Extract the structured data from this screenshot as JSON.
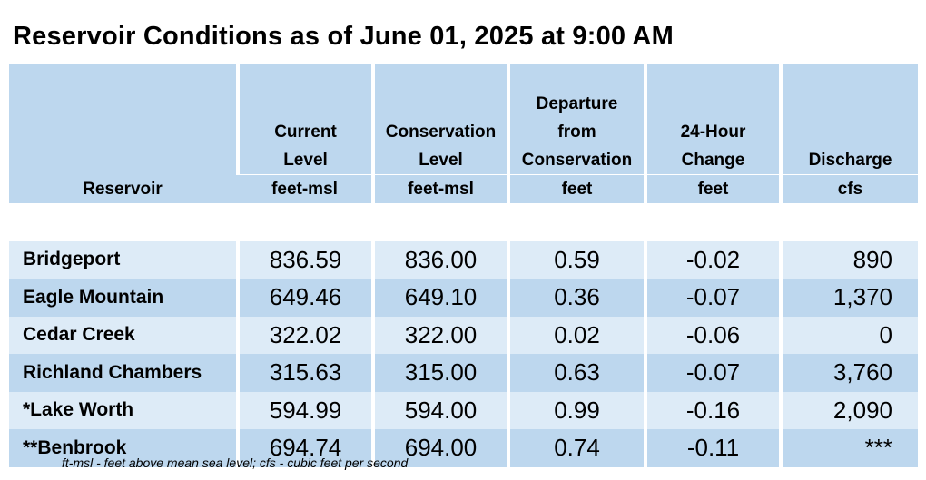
{
  "title": "Reservoir Conditions as of June 01, 2025 at 9:00 AM",
  "table": {
    "headers": [
      {
        "main": "",
        "units": "Reservoir"
      },
      {
        "main": "Current Level",
        "units": "feet-msl"
      },
      {
        "main": "Conservation Level",
        "units": "feet-msl"
      },
      {
        "main": "Departure from Conservation",
        "units": "feet"
      },
      {
        "main": "24-Hour Change",
        "units": "feet"
      },
      {
        "main": "Discharge",
        "units": "cfs"
      }
    ],
    "header_lines": {
      "current": [
        "Current",
        "Level"
      ],
      "conservation": [
        "Conservation",
        "Level"
      ],
      "departure": [
        "Departure",
        "from",
        "Conservation"
      ],
      "change": [
        "24-Hour",
        "Change"
      ],
      "discharge": [
        "Discharge"
      ]
    },
    "rows": [
      {
        "reservoir": "Bridgeport",
        "current": "836.59",
        "conservation": "836.00",
        "departure": "0.59",
        "change": "-0.02",
        "discharge": "890"
      },
      {
        "reservoir": "Eagle Mountain",
        "current": "649.46",
        "conservation": "649.10",
        "departure": "0.36",
        "change": "-0.07",
        "discharge": "1,370"
      },
      {
        "reservoir": "Cedar Creek",
        "current": "322.02",
        "conservation": "322.00",
        "departure": "0.02",
        "change": "-0.06",
        "discharge": "0"
      },
      {
        "reservoir": "Richland Chambers",
        "current": "315.63",
        "conservation": "315.00",
        "departure": "0.63",
        "change": "-0.07",
        "discharge": "3,760"
      },
      {
        "reservoir": "*Lake Worth",
        "current": "594.99",
        "conservation": "594.00",
        "departure": "0.99",
        "change": "-0.16",
        "discharge": "2,090"
      },
      {
        "reservoir": "**Benbrook",
        "current": "694.74",
        "conservation": "694.00",
        "departure": "0.74",
        "change": "-0.11",
        "discharge": "***"
      }
    ]
  },
  "footnote": "ft-msl - feet above mean sea level; cfs - cubic feet per second",
  "colors": {
    "header_bg": "#bdd7ee",
    "row_light": "#ddebf7",
    "row_dark": "#bdd7ee"
  }
}
